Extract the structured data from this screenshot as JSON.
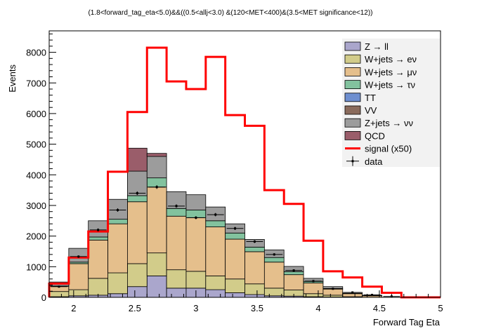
{
  "chart_data": {
    "type": "bar",
    "title": "(1.8<forward_tag_eta<5.0)&&((0.5<allj<3.0) &(120<MET<400)&(3.5<MET significance<12))",
    "xlabel": "Forward Tag Eta",
    "ylabel": "Events",
    "xlim": [
      1.8,
      5.0
    ],
    "ylim": [
      0,
      8700
    ],
    "x_ticks": [
      "2",
      "2.5",
      "3",
      "3.5",
      "4",
      "4.5",
      "5"
    ],
    "y_ticks": [
      "0",
      "1000",
      "2000",
      "3000",
      "4000",
      "5000",
      "6000",
      "7000",
      "8000"
    ],
    "bin_edges": [
      1.8,
      1.96,
      2.12,
      2.28,
      2.44,
      2.6,
      2.76,
      2.92,
      3.08,
      3.24,
      3.4,
      3.56,
      3.72,
      3.88,
      4.04,
      4.2,
      4.36,
      4.52,
      4.68,
      4.84,
      5.0
    ],
    "stack": [
      {
        "name": "Z → ll",
        "color": "#aaa6cc",
        "values": [
          20,
          50,
          70,
          120,
          350,
          700,
          300,
          300,
          250,
          150,
          90,
          50,
          40,
          20,
          10,
          0,
          0,
          0,
          0,
          0
        ]
      },
      {
        "name": "W+jets → eν",
        "color": "#d2cc8a",
        "values": [
          170,
          200,
          550,
          680,
          750,
          750,
          600,
          550,
          450,
          450,
          350,
          250,
          200,
          100,
          60,
          20,
          0,
          0,
          0,
          0
        ]
      },
      {
        "name": "W+jets → μν",
        "color": "#e5bf8c",
        "values": [
          170,
          850,
          1250,
          1600,
          2020,
          2150,
          1750,
          1750,
          1600,
          1300,
          1050,
          850,
          500,
          350,
          200,
          100,
          50,
          0,
          0,
          0
        ]
      },
      {
        "name": "W+jets → τν",
        "color": "#82c29e",
        "values": [
          10,
          50,
          100,
          150,
          200,
          300,
          250,
          250,
          200,
          200,
          150,
          150,
          100,
          50,
          20,
          10,
          0,
          0,
          0,
          0
        ]
      },
      {
        "name": "TT",
        "color": "#6e8fd0",
        "values": [
          0,
          0,
          0,
          0,
          0,
          0,
          0,
          0,
          0,
          0,
          0,
          0,
          0,
          0,
          0,
          0,
          0,
          0,
          0,
          0
        ]
      },
      {
        "name": "VV",
        "color": "#8a6b5c",
        "values": [
          0,
          0,
          0,
          0,
          0,
          0,
          0,
          0,
          0,
          0,
          0,
          0,
          0,
          0,
          0,
          0,
          0,
          0,
          0,
          0
        ]
      },
      {
        "name": "Z+jets → νν",
        "color": "#9c9c9c",
        "values": [
          130,
          450,
          530,
          650,
          800,
          700,
          550,
          500,
          450,
          300,
          250,
          250,
          170,
          100,
          60,
          30,
          20,
          0,
          0,
          0
        ]
      },
      {
        "name": "QCD",
        "color": "#9a5d6a",
        "values": [
          0,
          0,
          0,
          0,
          750,
          100,
          0,
          0,
          0,
          0,
          0,
          0,
          0,
          0,
          0,
          0,
          0,
          0,
          0,
          0
        ]
      }
    ],
    "signal": {
      "name": "signal (x50)",
      "color": "#ff0000",
      "values": [
        450,
        1300,
        2150,
        4100,
        6050,
        8150,
        7050,
        6800,
        7850,
        5950,
        5600,
        3500,
        3050,
        1850,
        850,
        650,
        350,
        150,
        0,
        0
      ]
    },
    "data": {
      "name": "data",
      "values": [
        350,
        1330,
        2200,
        2850,
        3400,
        3600,
        2980,
        2600,
        2700,
        2250,
        1820,
        1400,
        880,
        530,
        280,
        160,
        80,
        30,
        0,
        0
      ],
      "errors": [
        20,
        40,
        50,
        55,
        60,
        60,
        55,
        50,
        55,
        50,
        45,
        40,
        30,
        25,
        18,
        12,
        9,
        5,
        0,
        0
      ]
    },
    "legend_placement": "top-right",
    "grid": false
  }
}
